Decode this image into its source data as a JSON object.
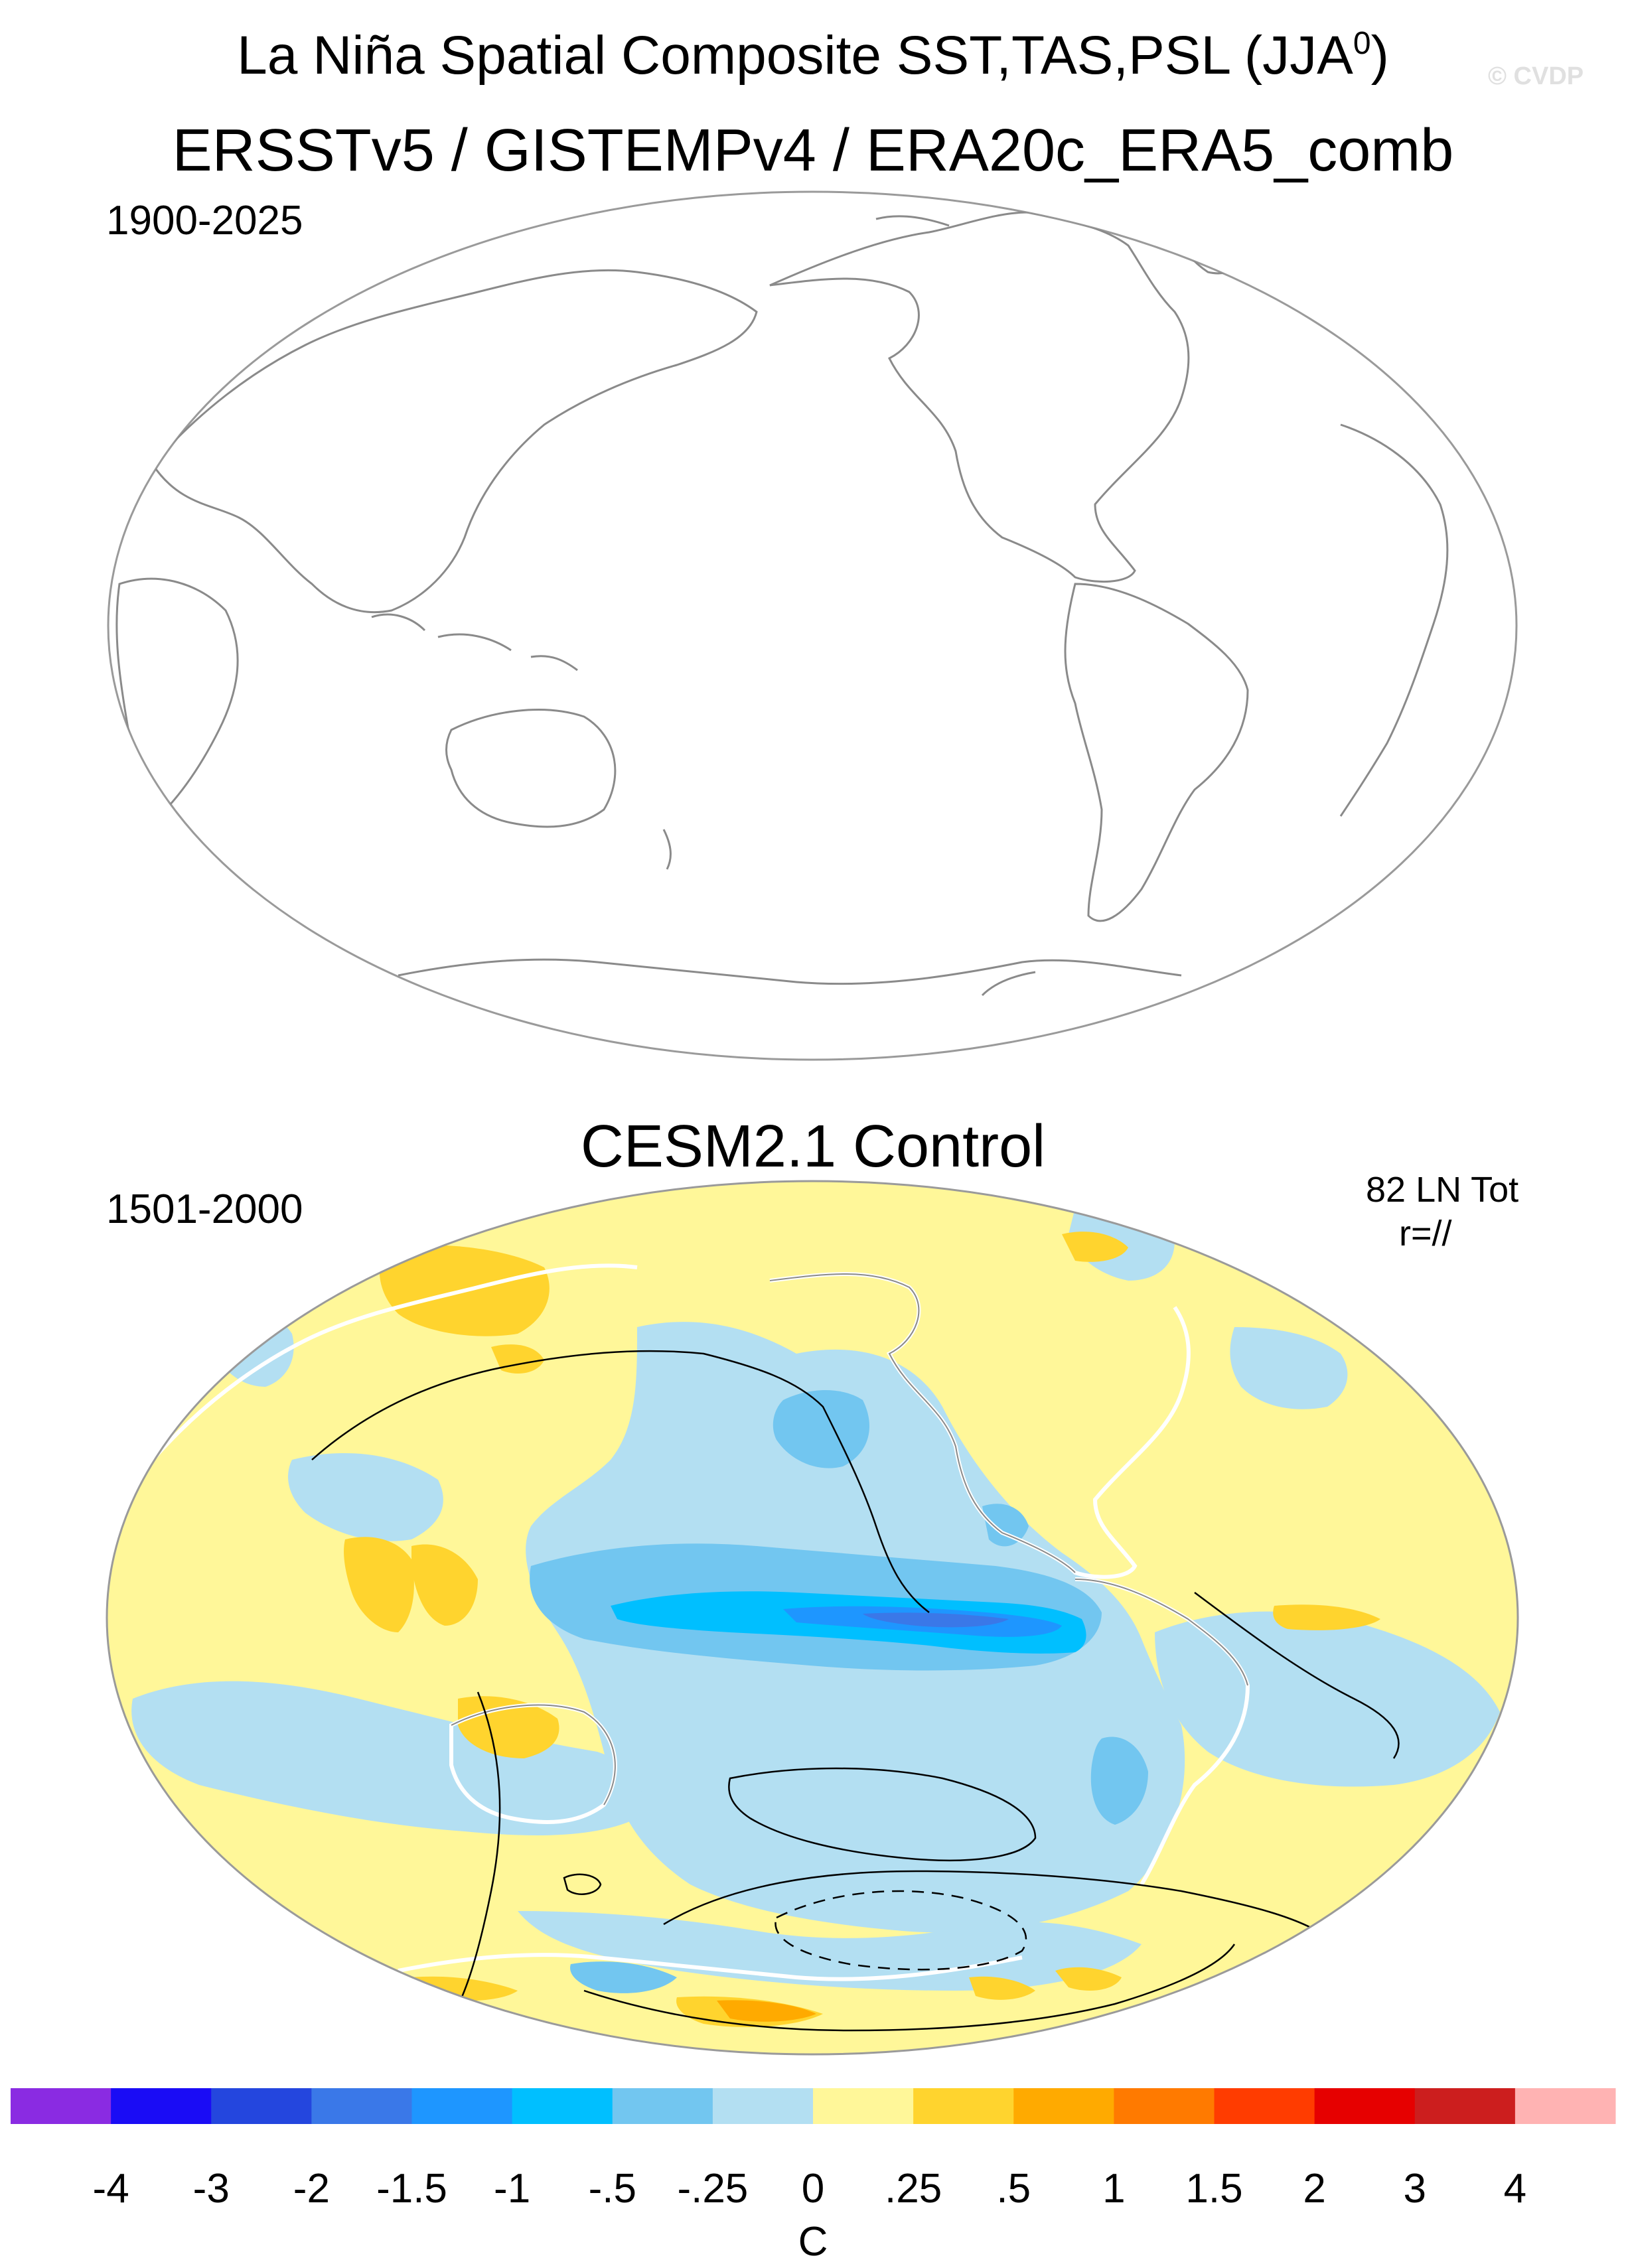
{
  "header": {
    "title_main": "La Niña Spatial Composite SST,TAS,PSL (JJA",
    "title_sup": "0",
    "title_close": ")",
    "watermark": "© CVDP"
  },
  "panels": {
    "observations": {
      "title": "ERSSTv5 / GISTEMPv4 / ERA20c_ERA5_comb",
      "years": "1900-2025"
    },
    "model": {
      "title": "CESM2.1 Control",
      "years": "1501-2000",
      "event_count": "82 LN Tot",
      "pattern_corr": "r=//"
    }
  },
  "colorbar": {
    "units": "C",
    "ticks": [
      "-4",
      "-3",
      "-2",
      "-1.5",
      "-1",
      "-.5",
      "-.25",
      "0",
      ".25",
      ".5",
      "1",
      "1.5",
      "2",
      "3",
      "4"
    ],
    "colors": [
      "#8a2be2",
      "#1a0cf5",
      "#2446de",
      "#3a78e8",
      "#1e96ff",
      "#00bfff",
      "#72c6f0",
      "#b3dff2",
      "#fff799",
      "#ffd42e",
      "#ffaa00",
      "#ff7a00",
      "#ff3c00",
      "#e60000",
      "#cc1e1e",
      "#ffb3b3"
    ]
  },
  "map_colors": {
    "land_outline": "#808080",
    "background": "#fff799"
  }
}
